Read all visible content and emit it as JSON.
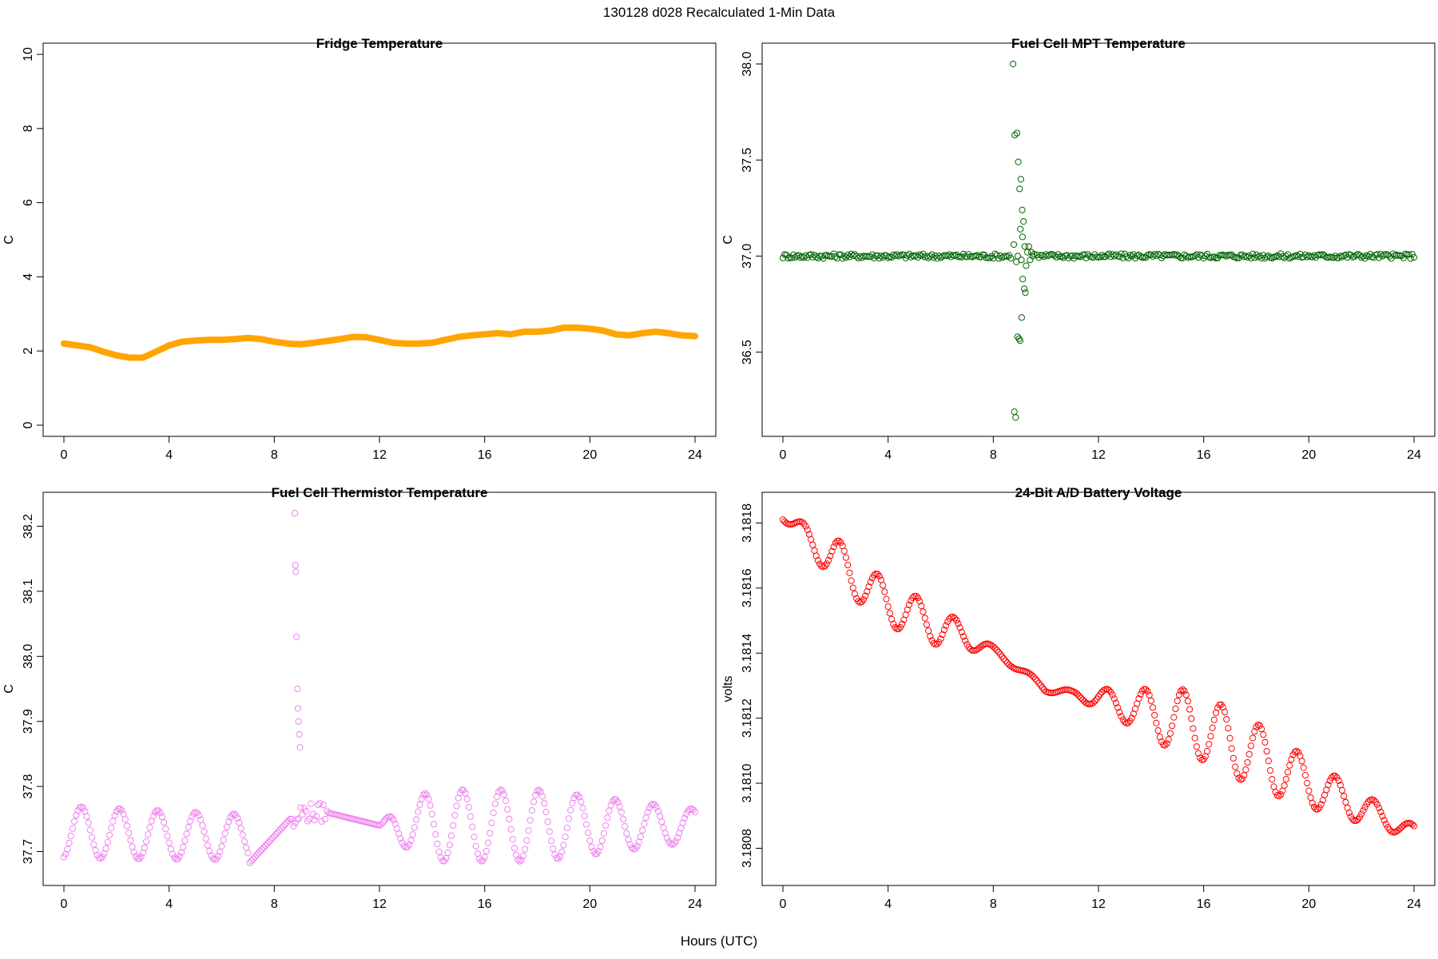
{
  "page": {
    "title": "130128   d028   Recalculated 1-Min Data",
    "x_axis_label": "Hours (UTC)"
  },
  "colors": {
    "fridge": "#FFA500",
    "mpt": "#006400",
    "thermistor": "#EE82EE",
    "battery": "#FF0000",
    "axis": "#000000"
  },
  "chart_data": [
    {
      "id": "fridge",
      "type": "scatter",
      "title": "Fridge Temperature",
      "xlabel": "",
      "ylabel": "C",
      "xlim": [
        0,
        24
      ],
      "ylim": [
        0,
        10
      ],
      "xticks": [
        0,
        4,
        8,
        12,
        16,
        20,
        24
      ],
      "yticks": [
        0,
        2,
        4,
        6,
        8,
        10
      ],
      "ytick_labels": [
        "0",
        "2",
        "4",
        "6",
        "8",
        "10"
      ],
      "marker": "filled",
      "x": [
        0,
        0.5,
        1,
        1.5,
        2,
        2.5,
        3,
        3.5,
        4,
        4.5,
        5,
        5.5,
        6,
        6.5,
        7,
        7.5,
        8,
        8.5,
        9,
        9.5,
        10,
        10.5,
        11,
        11.5,
        12,
        12.5,
        13,
        13.5,
        14,
        14.5,
        15,
        15.5,
        16,
        16.5,
        17,
        17.5,
        18,
        18.5,
        19,
        19.5,
        20,
        20.5,
        21,
        21.5,
        22,
        22.5,
        23,
        23.5,
        24
      ],
      "y": [
        2.2,
        2.15,
        2.1,
        1.98,
        1.88,
        1.82,
        1.82,
        1.98,
        2.15,
        2.25,
        2.28,
        2.3,
        2.3,
        2.32,
        2.35,
        2.32,
        2.25,
        2.2,
        2.18,
        2.22,
        2.27,
        2.32,
        2.38,
        2.37,
        2.3,
        2.22,
        2.2,
        2.2,
        2.22,
        2.3,
        2.38,
        2.42,
        2.45,
        2.48,
        2.45,
        2.52,
        2.52,
        2.55,
        2.63,
        2.63,
        2.6,
        2.55,
        2.45,
        2.42,
        2.48,
        2.52,
        2.48,
        2.42,
        2.4
      ]
    },
    {
      "id": "mpt",
      "type": "scatter",
      "title": "Fuel Cell MPT Temperature",
      "xlabel": "",
      "ylabel": "C",
      "xlim": [
        0,
        24
      ],
      "ylim": [
        36.12,
        38.05
      ],
      "xticks": [
        0,
        4,
        8,
        12,
        16,
        20,
        24
      ],
      "yticks": [
        36.5,
        37.0,
        37.5,
        38.0
      ],
      "ytick_labels": [
        "36.5",
        "37.0",
        "37.5",
        "38.0"
      ],
      "marker": "open",
      "baseline": 37.0,
      "spike_x": [
        8.75,
        8.82,
        8.9,
        8.95,
        9.0,
        9.05,
        9.1,
        9.15,
        8.8,
        8.85,
        8.92,
        8.98,
        9.02,
        9.08,
        9.12,
        9.18,
        9.22,
        8.78,
        8.88,
        8.93,
        9.03,
        9.07,
        9.11,
        9.2,
        9.25,
        9.3,
        9.35,
        9.4,
        9.45,
        9.5,
        9.55
      ],
      "spike_y": [
        38.0,
        37.63,
        37.64,
        37.49,
        37.35,
        37.4,
        37.24,
        37.18,
        36.19,
        36.16,
        36.58,
        36.57,
        36.56,
        36.68,
        36.88,
        36.83,
        36.81,
        37.06,
        36.97,
        37.0,
        37.14,
        36.98,
        37.1,
        37.05,
        36.95,
        37.02,
        37.05,
        36.98,
        37.02,
        37.0,
        37.01
      ]
    },
    {
      "id": "thermistor",
      "type": "scatter",
      "title": "Fuel Cell Thermistor Temperature",
      "xlabel": "",
      "ylabel": "C",
      "xlim": [
        0,
        24
      ],
      "ylim": [
        37.665,
        38.235
      ],
      "xticks": [
        0,
        4,
        8,
        12,
        16,
        20,
        24
      ],
      "yticks": [
        37.7,
        37.8,
        37.9,
        38.0,
        38.1,
        38.2
      ],
      "ytick_labels": [
        "37.7",
        "37.8",
        "37.9",
        "38.0",
        "38.1",
        "38.2"
      ],
      "marker": "open",
      "period_hours": 1.45,
      "spike_x": [
        8.78,
        8.8,
        8.82,
        8.85,
        8.88,
        8.9,
        8.92,
        8.95,
        8.98
      ],
      "spike_y": [
        38.22,
        38.14,
        38.13,
        38.03,
        37.95,
        37.92,
        37.9,
        37.88,
        37.86
      ]
    },
    {
      "id": "battery",
      "type": "scatter",
      "title": "24-Bit A/D Battery Voltage",
      "xlabel": "",
      "ylabel": "volts",
      "xlim": [
        0,
        24
      ],
      "ylim": [
        3.18072,
        3.18186
      ],
      "xticks": [
        0,
        4,
        8,
        12,
        16,
        20,
        24
      ],
      "yticks": [
        3.1808,
        3.181,
        3.1812,
        3.1814,
        3.1816,
        3.1818
      ],
      "ytick_labels": [
        "3.1808",
        "3.1810",
        "3.1812",
        "3.1814",
        "3.1816",
        "3.1818"
      ],
      "marker": "open",
      "period_hours": 1.45,
      "trend_points": [
        [
          0,
          3.18182
        ],
        [
          4,
          3.18155
        ],
        [
          8,
          3.18141
        ],
        [
          10,
          3.18129
        ],
        [
          12,
          3.18126
        ],
        [
          16,
          3.18117
        ],
        [
          20,
          3.181
        ],
        [
          24,
          3.18085
        ]
      ],
      "amplitude_points": [
        [
          0,
          1e-05
        ],
        [
          2,
          7e-05
        ],
        [
          6,
          6e-05
        ],
        [
          8,
          1e-05
        ],
        [
          11,
          1e-05
        ],
        [
          13,
          5e-05
        ],
        [
          15,
          0.0001
        ],
        [
          18,
          0.0001
        ],
        [
          24,
          2e-05
        ]
      ]
    }
  ]
}
